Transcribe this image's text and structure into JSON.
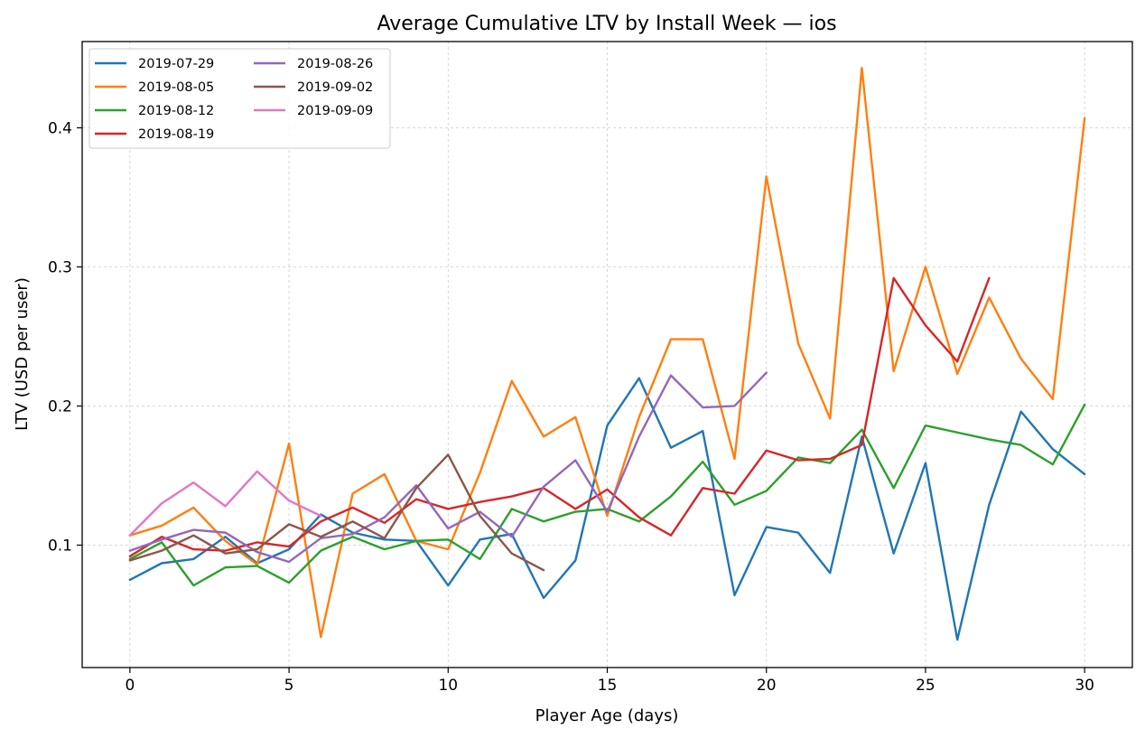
{
  "chart_data": {
    "type": "line",
    "title": "Average Cumulative LTV by Install Week — ios",
    "xlabel": "Player Age (days)",
    "ylabel": "LTV (USD per user)",
    "xlim": [
      -1.5,
      31.5
    ],
    "ylim": [
      0.012,
      0.462
    ],
    "xticks": [
      0,
      5,
      10,
      15,
      20,
      25,
      30
    ],
    "yticks": [
      0.1,
      0.2,
      0.3,
      0.4
    ],
    "ytick_labels": [
      "0.1",
      "0.2",
      "0.3",
      "0.4"
    ],
    "grid": true,
    "legend_position": "top-left",
    "legend_columns": 2,
    "series": [
      {
        "name": "2019-07-29",
        "color": "#1f77b4",
        "x": [
          0,
          1,
          2,
          3,
          4,
          5,
          6,
          7,
          8,
          9,
          10,
          11,
          12,
          13,
          14,
          15,
          16,
          17,
          18,
          19,
          20,
          21,
          22,
          23,
          24,
          25,
          26,
          27,
          28,
          29,
          30
        ],
        "values": [
          0.075,
          0.087,
          0.09,
          0.106,
          0.087,
          0.097,
          0.122,
          0.109,
          0.104,
          0.103,
          0.071,
          0.104,
          0.108,
          0.062,
          0.089,
          0.186,
          0.22,
          0.17,
          0.182,
          0.064,
          0.113,
          0.109,
          0.08,
          0.178,
          0.094,
          0.159,
          0.032,
          0.129,
          0.196,
          0.169,
          0.151
        ]
      },
      {
        "name": "2019-08-05",
        "color": "#ff7f0e",
        "x": [
          0,
          1,
          2,
          3,
          4,
          5,
          6,
          7,
          8,
          9,
          10,
          11,
          12,
          13,
          14,
          15,
          16,
          17,
          18,
          19,
          20,
          21,
          22,
          23,
          24,
          25,
          26,
          27,
          28,
          29,
          30
        ],
        "values": [
          0.107,
          0.114,
          0.127,
          0.103,
          0.086,
          0.173,
          0.034,
          0.137,
          0.151,
          0.103,
          0.097,
          0.152,
          0.218,
          0.178,
          0.192,
          0.121,
          0.192,
          0.248,
          0.248,
          0.162,
          0.365,
          0.245,
          0.191,
          0.443,
          0.225,
          0.3,
          0.223,
          0.278,
          0.234,
          0.205,
          0.407
        ]
      },
      {
        "name": "2019-08-12",
        "color": "#2ca02c",
        "x": [
          0,
          1,
          2,
          3,
          4,
          5,
          6,
          7,
          8,
          9,
          10,
          11,
          12,
          13,
          14,
          15,
          16,
          17,
          18,
          19,
          20,
          21,
          22,
          23,
          24,
          25,
          26,
          27,
          28,
          29,
          30
        ],
        "values": [
          0.09,
          0.102,
          0.071,
          0.084,
          0.085,
          0.073,
          0.096,
          0.106,
          0.097,
          0.103,
          0.104,
          0.09,
          0.126,
          0.117,
          0.124,
          0.126,
          0.117,
          0.135,
          0.16,
          0.129,
          0.139,
          0.163,
          0.159,
          0.183,
          0.141,
          0.186,
          0.181,
          0.176,
          0.172,
          0.158,
          0.201
        ]
      },
      {
        "name": "2019-08-19",
        "color": "#d62728",
        "x": [
          0,
          1,
          2,
          3,
          4,
          5,
          6,
          7,
          8,
          9,
          10,
          11,
          12,
          13,
          14,
          15,
          16,
          17,
          18,
          19,
          20,
          21,
          22,
          23,
          24,
          25,
          26,
          27
        ],
        "values": [
          0.092,
          0.106,
          0.097,
          0.096,
          0.102,
          0.099,
          0.117,
          0.127,
          0.116,
          0.133,
          0.126,
          0.131,
          0.135,
          0.141,
          0.126,
          0.14,
          0.12,
          0.107,
          0.141,
          0.137,
          0.168,
          0.161,
          0.162,
          0.172,
          0.292,
          0.258,
          0.232,
          0.292
        ]
      },
      {
        "name": "2019-08-26",
        "color": "#9467bd",
        "x": [
          0,
          1,
          2,
          3,
          4,
          5,
          6,
          7,
          8,
          9,
          10,
          11,
          12,
          13,
          14,
          15,
          16,
          17,
          18,
          19,
          20
        ],
        "values": [
          0.096,
          0.104,
          0.111,
          0.109,
          0.095,
          0.088,
          0.105,
          0.108,
          0.12,
          0.143,
          0.112,
          0.124,
          0.106,
          0.142,
          0.161,
          0.124,
          0.178,
          0.222,
          0.199,
          0.2,
          0.224
        ]
      },
      {
        "name": "2019-09-02",
        "color": "#8c564b",
        "x": [
          0,
          1,
          2,
          3,
          4,
          5,
          6,
          7,
          8,
          9,
          10,
          11,
          12,
          13
        ],
        "values": [
          0.089,
          0.096,
          0.107,
          0.094,
          0.097,
          0.115,
          0.106,
          0.117,
          0.105,
          0.141,
          0.165,
          0.121,
          0.094,
          0.082
        ]
      },
      {
        "name": "2019-09-09",
        "color": "#e377c2",
        "x": [
          0,
          1,
          2,
          3,
          4,
          5,
          6
        ],
        "values": [
          0.107,
          0.13,
          0.145,
          0.128,
          0.153,
          0.132,
          0.121
        ]
      }
    ]
  }
}
